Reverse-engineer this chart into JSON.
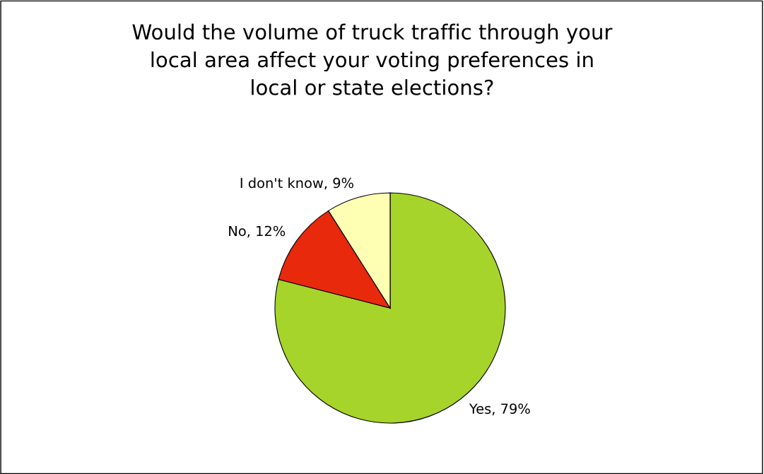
{
  "chart_data": {
    "type": "pie",
    "title": "Would the volume of truck traffic through your\nlocal area affect your voting preferences in\nlocal or state elections?",
    "categories": [
      "Yes",
      "No",
      "I don't know"
    ],
    "values": [
      79,
      12,
      9
    ],
    "value_labels": [
      "79%",
      "12%",
      "9%"
    ],
    "colors": [
      "#a6d42a",
      "#e8290b",
      "#ffffb3"
    ],
    "legend": false
  }
}
